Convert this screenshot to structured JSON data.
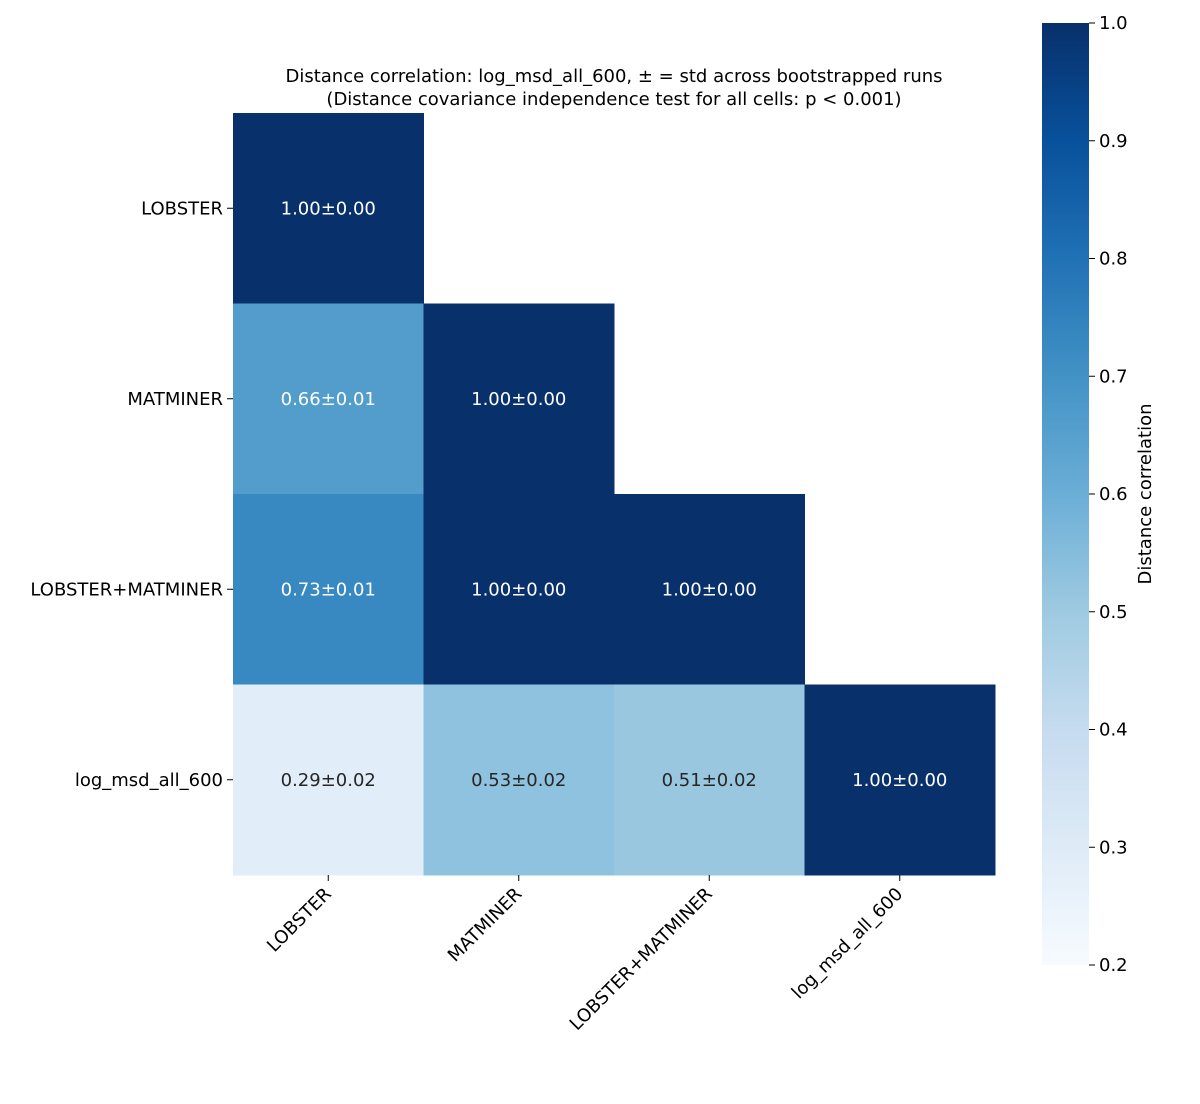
{
  "chart_data": {
    "type": "heatmap",
    "title": "Distance correlation: log_msd_all_600, ± = std across bootstrapped runs",
    "subtitle": "(Distance covariance independence test for all cells: p < 0.001)",
    "row_labels": [
      "LOBSTER",
      "MATMINER",
      "LOBSTER+MATMINER",
      "log_msd_all_600"
    ],
    "col_labels": [
      "LOBSTER",
      "MATMINER",
      "LOBSTER+MATMINER",
      "log_msd_all_600"
    ],
    "values": [
      [
        1.0,
        null,
        null,
        null
      ],
      [
        0.66,
        1.0,
        null,
        null
      ],
      [
        0.73,
        1.0,
        1.0,
        null
      ],
      [
        0.29,
        0.53,
        0.51,
        1.0
      ]
    ],
    "cell_labels": [
      [
        "1.00±0.00",
        null,
        null,
        null
      ],
      [
        "0.66±0.01",
        "1.00±0.00",
        null,
        null
      ],
      [
        "0.73±0.01",
        "1.00±0.00",
        "1.00±0.00",
        null
      ],
      [
        "0.29±0.02",
        "0.53±0.02",
        "0.51±0.02",
        "1.00±0.00"
      ]
    ],
    "mask": "upper triangle",
    "colormap": "Blues",
    "colorbar": {
      "label": "Distance correlation",
      "range": [
        0.2,
        1.0
      ],
      "ticks": [
        "0.2",
        "0.3",
        "0.4",
        "0.5",
        "0.6",
        "0.7",
        "0.8",
        "0.9",
        "1.0"
      ]
    }
  }
}
